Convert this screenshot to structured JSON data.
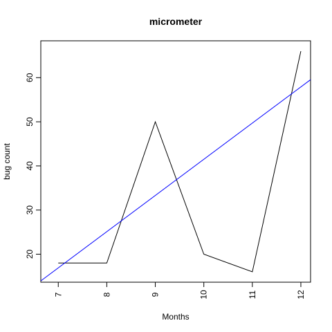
{
  "chart_data": {
    "type": "line",
    "title": "micrometer",
    "xlabel": "Months",
    "ylabel": "bug count",
    "xlim": [
      6.64,
      12.2
    ],
    "ylim": [
      13.65,
      68.35
    ],
    "x_ticks": [
      7,
      8,
      9,
      10,
      11,
      12
    ],
    "y_ticks": [
      20,
      30,
      40,
      50,
      60
    ],
    "grid": false,
    "legend": "none",
    "series": [
      {
        "x": [
          7,
          8,
          9,
          10,
          11,
          12
        ],
        "values": [
          18,
          18,
          50,
          20,
          16,
          66
        ],
        "color": "#000000"
      }
    ],
    "trendline": {
      "intercept": -40.5,
      "slope": 8.2,
      "color": "#0000ff"
    }
  }
}
